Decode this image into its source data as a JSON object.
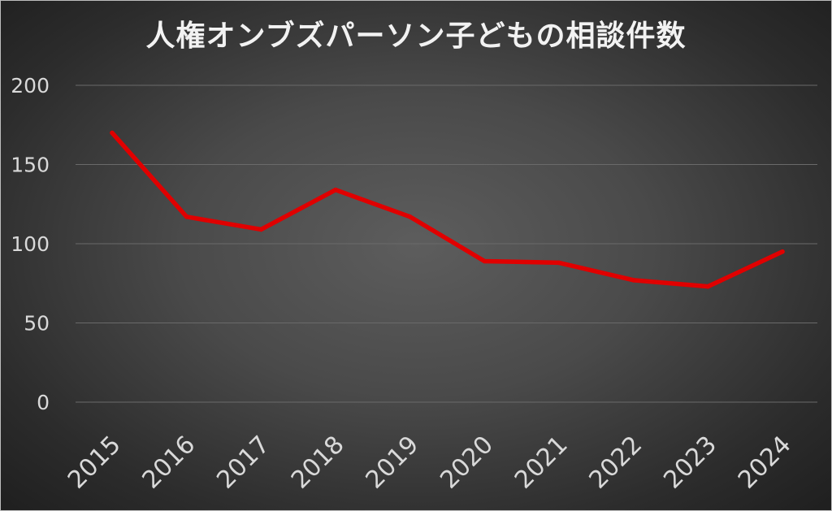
{
  "chart_data": {
    "type": "line",
    "title": "人権オンブズパーソン子どもの相談件数",
    "xlabel": "",
    "ylabel": "",
    "categories": [
      "2015",
      "2016",
      "2017",
      "2018",
      "2019",
      "2020",
      "2021",
      "2022",
      "2023",
      "2024"
    ],
    "series": [
      {
        "values": [
          170,
          117,
          109,
          134,
          117,
          89,
          88,
          77,
          73,
          95
        ],
        "color": "#e00000"
      }
    ],
    "ylim": [
      0,
      200
    ],
    "yticks": [
      "0",
      "50",
      "100",
      "150",
      "200"
    ],
    "grid": true,
    "legend": "none"
  }
}
